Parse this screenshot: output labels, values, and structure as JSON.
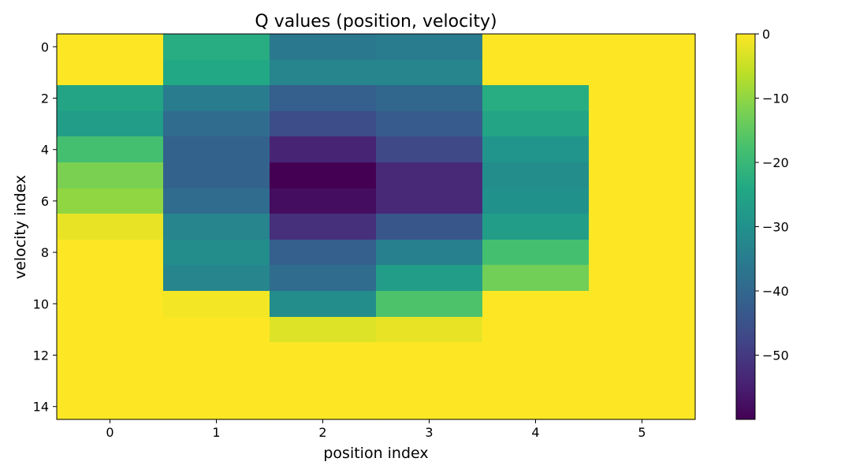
{
  "chart_data": {
    "type": "heatmap",
    "title": "Q values (position, velocity)",
    "xlabel": "position index",
    "ylabel": "velocity index",
    "x_ticks": [
      0,
      1,
      2,
      3,
      4,
      5
    ],
    "y_ticks": [
      0,
      2,
      4,
      6,
      8,
      10,
      12,
      14
    ],
    "x_categories": [
      0,
      1,
      2,
      3,
      4,
      5
    ],
    "y_categories": [
      0,
      1,
      2,
      3,
      4,
      5,
      6,
      7,
      8,
      9,
      10,
      11,
      12,
      13,
      14
    ],
    "colormap": "viridis",
    "vmin": -60,
    "vmax": 0,
    "colorbar_ticks": [
      0,
      -10,
      -20,
      -30,
      -40,
      -50
    ],
    "colorbar_tick_labels": [
      "0",
      "−10",
      "−20",
      "−30",
      "−40",
      "−50"
    ],
    "values": [
      [
        0,
        -23,
        -36,
        -35,
        0,
        0
      ],
      [
        0,
        -24,
        -33,
        -33,
        0,
        0
      ],
      [
        -25,
        -35,
        -42,
        -40,
        -23,
        0
      ],
      [
        -27,
        -39,
        -46,
        -43,
        -25,
        0
      ],
      [
        -18,
        -41,
        -54,
        -47,
        -29,
        0
      ],
      [
        -12,
        -41,
        -60,
        -53,
        -31,
        0
      ],
      [
        -10,
        -39,
        -58,
        -53,
        -30,
        0
      ],
      [
        -2,
        -33,
        -52,
        -44,
        -27,
        0
      ],
      [
        0,
        -31,
        -42,
        -34,
        -18,
        0
      ],
      [
        0,
        -33,
        -39,
        -27,
        -13,
        0
      ],
      [
        0,
        -1,
        -31,
        -17,
        0,
        0
      ],
      [
        0,
        0,
        -3,
        -2,
        0,
        0
      ],
      [
        0,
        0,
        0,
        0,
        0,
        0
      ],
      [
        0,
        0,
        0,
        0,
        0,
        0
      ],
      [
        0,
        0,
        0,
        0,
        0,
        0
      ]
    ]
  }
}
